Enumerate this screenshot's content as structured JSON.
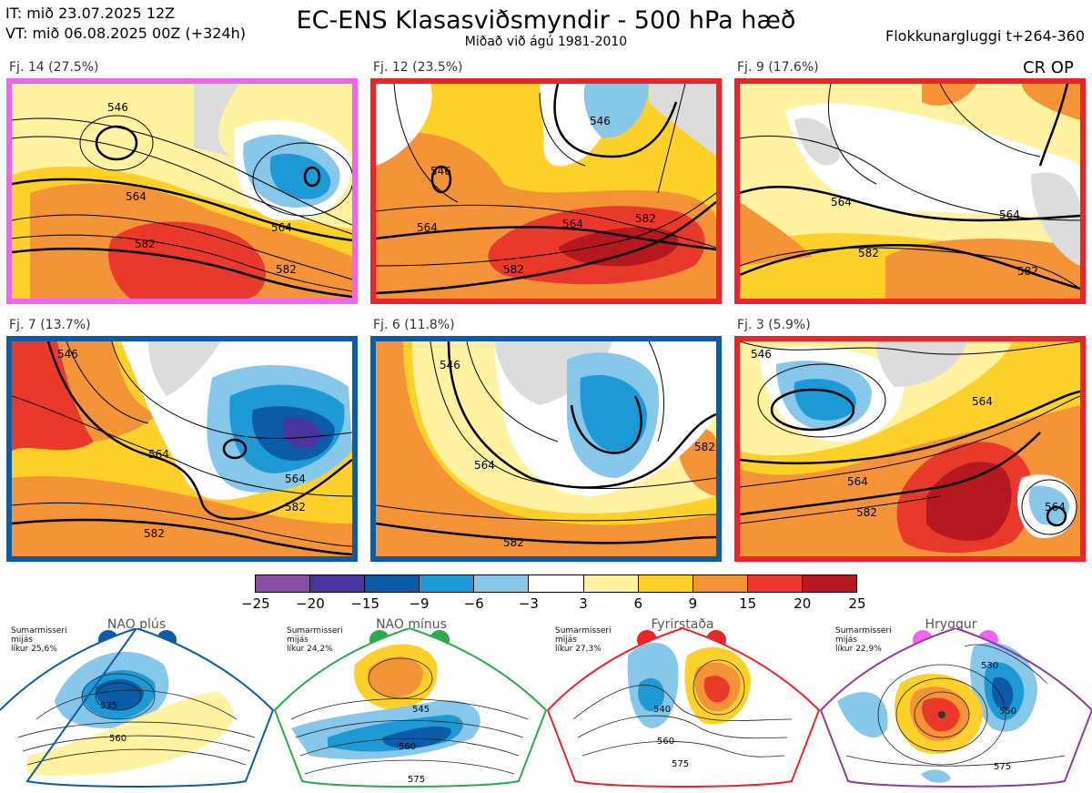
{
  "header": {
    "it_line": "IT: mið 23.07.2025 12Z",
    "vt_line": "VT: mið 06.08.2025 00Z  (+324h)",
    "title": "EC-ENS Klasasviðsmyndir - 500 hPa hæð",
    "subtitle": "Miðað við ágú 1981-2010",
    "window": "Flokkunargluggi t+264-360"
  },
  "regime_tag": "CR OP",
  "clusters": [
    {
      "label": "Fj. 14 (27.5%)",
      "border": "#ee66ee",
      "contours": [
        "546",
        "564",
        "564",
        "582",
        "582"
      ]
    },
    {
      "label": "Fj. 12 (23.5%)",
      "border": "#e8262a",
      "contours": [
        "546",
        "546",
        "564",
        "564",
        "582",
        "582"
      ]
    },
    {
      "label": "Fj. 9 (17.6%)",
      "border": "#e8262a",
      "contours": [
        "564",
        "564",
        "582",
        "582"
      ]
    },
    {
      "label": "Fj. 7 (13.7%)",
      "border": "#0b5ba6",
      "contours": [
        "546",
        "564",
        "564",
        "582",
        "582"
      ]
    },
    {
      "label": "Fj. 6 (11.8%)",
      "border": "#0b5ba6",
      "contours": [
        "546",
        "564",
        "582",
        "582"
      ]
    },
    {
      "label": "Fj. 3 (5.9%)",
      "border": "#e8262a",
      "contours": [
        "546",
        "564",
        "564",
        "582",
        "564"
      ]
    }
  ],
  "colorbar": {
    "labels": [
      "−25",
      "−20",
      "−15",
      "−9",
      "−6",
      "−3",
      "3",
      "6",
      "9",
      "15",
      "20",
      "25"
    ],
    "colors": [
      "#8a4fa3",
      "#4b35a0",
      "#0b5ba6",
      "#1d9ad6",
      "#86c7ea",
      "#ffffff",
      "#fff2a0",
      "#fdd02a",
      "#f49338",
      "#e8392b",
      "#b5191f"
    ]
  },
  "climatology": [
    {
      "name": "NAO plús",
      "info": [
        "Sumarmisseri",
        "mijás",
        "líkur 25,6%"
      ],
      "color": "#0b5ba6",
      "contours": [
        "535",
        "560"
      ]
    },
    {
      "name": "NAO mínus",
      "info": [
        "Sumarmisseri",
        "mijás",
        "líkur 24,2%"
      ],
      "color": "#2aaa4a",
      "contours": [
        "545",
        "560",
        "575"
      ]
    },
    {
      "name": "Fyrirstaða",
      "info": [
        "Sumarmisseri",
        "mijás",
        "líkur 27,3%"
      ],
      "color": "#e8262a",
      "contours": [
        "540",
        "560",
        "575"
      ]
    },
    {
      "name": "Hryggur",
      "info": [
        "Sumarmisseri",
        "mijás",
        "líkur 22,9%"
      ],
      "color": "#ee66ee",
      "contours": [
        "530",
        "550",
        "575"
      ]
    }
  ]
}
